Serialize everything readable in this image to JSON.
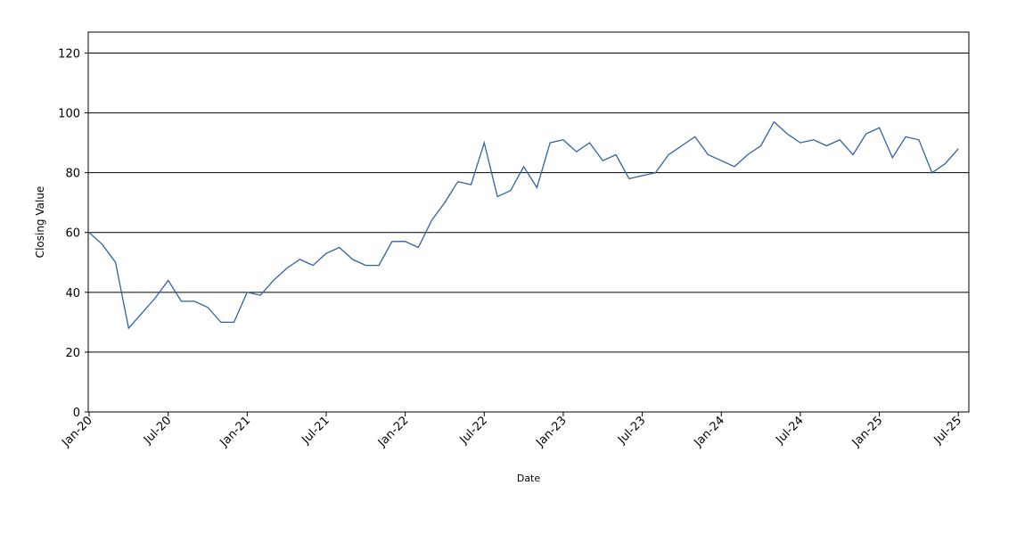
{
  "chart_data": {
    "type": "line",
    "x_label": "Date",
    "y_label": "Closing Value",
    "x": [
      "2020-01",
      "2020-02",
      "2020-03",
      "2020-04",
      "2020-05",
      "2020-06",
      "2020-07",
      "2020-08",
      "2020-09",
      "2020-10",
      "2020-11",
      "2020-12",
      "2021-01",
      "2021-02",
      "2021-03",
      "2021-04",
      "2021-05",
      "2021-06",
      "2021-07",
      "2021-08",
      "2021-09",
      "2021-10",
      "2021-11",
      "2021-12",
      "2022-01",
      "2022-02",
      "2022-03",
      "2022-04",
      "2022-05",
      "2022-06",
      "2022-07",
      "2022-08",
      "2022-09",
      "2022-10",
      "2022-11",
      "2022-12",
      "2023-01",
      "2023-02",
      "2023-03",
      "2023-04",
      "2023-05",
      "2023-06",
      "2023-07",
      "2023-08",
      "2023-09",
      "2023-10",
      "2023-11",
      "2023-12",
      "2024-01",
      "2024-02",
      "2024-03",
      "2024-04",
      "2024-05",
      "2024-06",
      "2024-07",
      "2024-08",
      "2024-09",
      "2024-10",
      "2024-11",
      "2024-12",
      "2025-01",
      "2025-02",
      "2025-03",
      "2025-04",
      "2025-05",
      "2025-06",
      "2025-07"
    ],
    "series": [
      {
        "name": "Closing Value",
        "color": "#2f62a8",
        "values": [
          60,
          56,
          50,
          28,
          33,
          38,
          44,
          37,
          37,
          35,
          30,
          30,
          40,
          39,
          44,
          48,
          51,
          49,
          53,
          55,
          51,
          49,
          49,
          57,
          57,
          55,
          64,
          70,
          77,
          76,
          90,
          72,
          74,
          82,
          75,
          90,
          91,
          87,
          90,
          84,
          86,
          78,
          79,
          80,
          86,
          89,
          92,
          86,
          84,
          82,
          86,
          89,
          97,
          93,
          90,
          91,
          89,
          91,
          86,
          93,
          95,
          85,
          92,
          91,
          80,
          83,
          88
        ]
      }
    ],
    "xlim": [
      "2020-01",
      "2025-08"
    ],
    "xticks": [
      {
        "value": "2020-01",
        "label": "Jan-20"
      },
      {
        "value": "2020-07",
        "label": "Jul-20"
      },
      {
        "value": "2021-01",
        "label": "Jan-21"
      },
      {
        "value": "2021-07",
        "label": "Jul-21"
      },
      {
        "value": "2022-01",
        "label": "Jan-22"
      },
      {
        "value": "2022-07",
        "label": "Jul-22"
      },
      {
        "value": "2023-01",
        "label": "Jan-23"
      },
      {
        "value": "2023-07",
        "label": "Jul-23"
      },
      {
        "value": "2024-01",
        "label": "Jan-24"
      },
      {
        "value": "2024-07",
        "label": "Jul-24"
      },
      {
        "value": "2025-01",
        "label": "Jan-25"
      },
      {
        "value": "2025-07",
        "label": "Jul-25"
      }
    ],
    "ylim": [
      0,
      127
    ],
    "yticks": [
      0,
      20,
      40,
      60,
      80,
      100,
      120
    ],
    "grid": true
  }
}
